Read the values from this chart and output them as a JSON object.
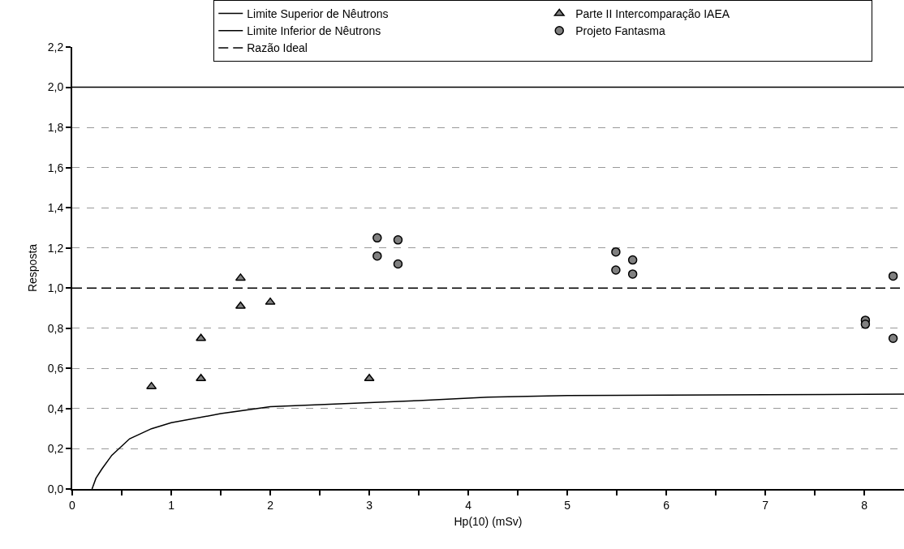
{
  "chart_data": {
    "type": "scatter",
    "xlabel": "Hp(10) (mSv)",
    "ylabel": "Resposta",
    "series": [
      {
        "name": "Limite Superior de Nêutrons",
        "type": "line",
        "color": "#000000",
        "line_style": "solid",
        "marker": "none",
        "x": [
          0,
          8.4
        ],
        "values": [
          2.0,
          2.0
        ]
      },
      {
        "name": "Limite Inferior de Nêutrons",
        "type": "line",
        "color": "#000000",
        "line_style": "solid",
        "marker": "none",
        "x": [
          0.2,
          0.24,
          0.3,
          0.4,
          0.58,
          0.8,
          1.0,
          1.5,
          2.0,
          3.0,
          3.5,
          4.2,
          5.0,
          6.0,
          7.0,
          8.4
        ],
        "values": [
          0,
          0.054,
          0.1,
          0.168,
          0.25,
          0.3,
          0.33,
          0.375,
          0.41,
          0.43,
          0.44,
          0.457,
          0.465,
          0.467,
          0.469,
          0.472
        ]
      },
      {
        "name": "Razão Ideal",
        "type": "line",
        "color": "#000000",
        "line_style": "dashed",
        "marker": "none",
        "x": [
          0,
          8.4
        ],
        "values": [
          1.0,
          1.0
        ]
      },
      {
        "name": "Parte II Intercomparação IAEA",
        "color": "#808080",
        "marker": "triangle",
        "x": [
          0.8,
          1.3,
          1.3,
          1.7,
          1.7,
          2.0,
          3.0
        ],
        "values": [
          0.51,
          0.75,
          0.55,
          1.05,
          0.91,
          0.93,
          0.55
        ]
      },
      {
        "name": "Projeto Fantasma",
        "color": "#808080",
        "marker": "circle",
        "x": [
          3.08,
          3.08,
          3.29,
          3.29,
          5.49,
          5.49,
          5.66,
          5.66,
          8.29,
          8.29,
          8.01,
          8.01
        ],
        "values": [
          1.25,
          1.16,
          1.24,
          1.12,
          1.18,
          1.09,
          1.14,
          1.07,
          1.06,
          0.75,
          0.84,
          0.82
        ]
      }
    ],
    "xlim": [
      0,
      8.4
    ],
    "xticks": [
      0,
      {
        "value": 0.5,
        "label": null
      },
      1,
      {
        "value": 1.5,
        "label": null
      },
      2,
      {
        "value": 2.5,
        "label": null
      },
      3,
      {
        "value": 3.5,
        "label": null
      },
      4,
      {
        "value": 4.5,
        "label": null
      },
      5,
      {
        "value": 5.5,
        "label": null
      },
      6,
      {
        "value": 6.5,
        "label": null
      },
      7,
      {
        "value": 7.5,
        "label": null
      },
      8
    ],
    "ylim": [
      0,
      2.2
    ],
    "yticks": [
      {
        "value": 0,
        "label": "0,0"
      },
      {
        "value": 0.2,
        "label": "0,2"
      },
      {
        "value": 0.4,
        "label": "0,4"
      },
      {
        "value": 0.6,
        "label": "0,6"
      },
      {
        "value": 0.8,
        "label": "0,8"
      },
      {
        "value": 1.0,
        "label": "1,0"
      },
      {
        "value": 1.2,
        "label": "1,2"
      },
      {
        "value": 1.4,
        "label": "1,4"
      },
      {
        "value": 1.6,
        "label": "1,6"
      },
      {
        "value": 1.8,
        "label": "1,8"
      },
      {
        "value": 2.0,
        "label": "2,0"
      },
      {
        "value": 2.2,
        "label": "2,2"
      }
    ],
    "grid": "y",
    "legend": "top"
  }
}
